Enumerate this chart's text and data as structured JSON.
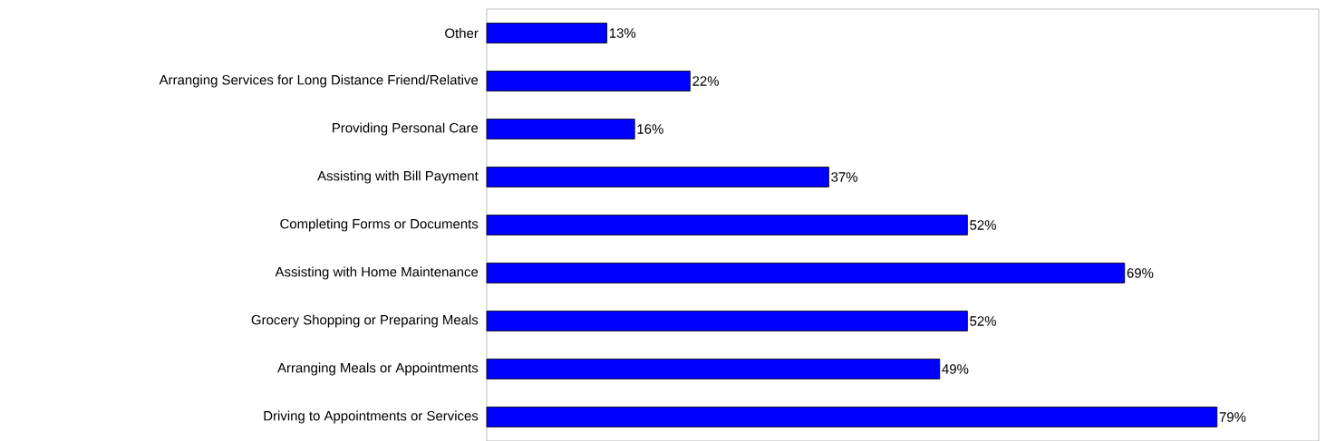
{
  "chart_data": {
    "type": "bar",
    "orientation": "horizontal",
    "categories": [
      "Other",
      "Arranging Services for Long Distance Friend/Relative",
      "Providing Personal Care",
      "Assisting with Bill Payment",
      "Completing Forms or Documents",
      "Assisting with Home Maintenance",
      "Grocery Shopping or Preparing Meals",
      "Arranging Meals or Appointments",
      "Driving to Appointments or Services"
    ],
    "values": [
      13,
      22,
      16,
      37,
      52,
      69,
      52,
      49,
      79
    ],
    "value_labels": [
      "13%",
      "22%",
      "16%",
      "37%",
      "52%",
      "69%",
      "52%",
      "49%",
      "79%"
    ],
    "color": "#0000ff",
    "xlim": [
      0,
      90
    ]
  }
}
